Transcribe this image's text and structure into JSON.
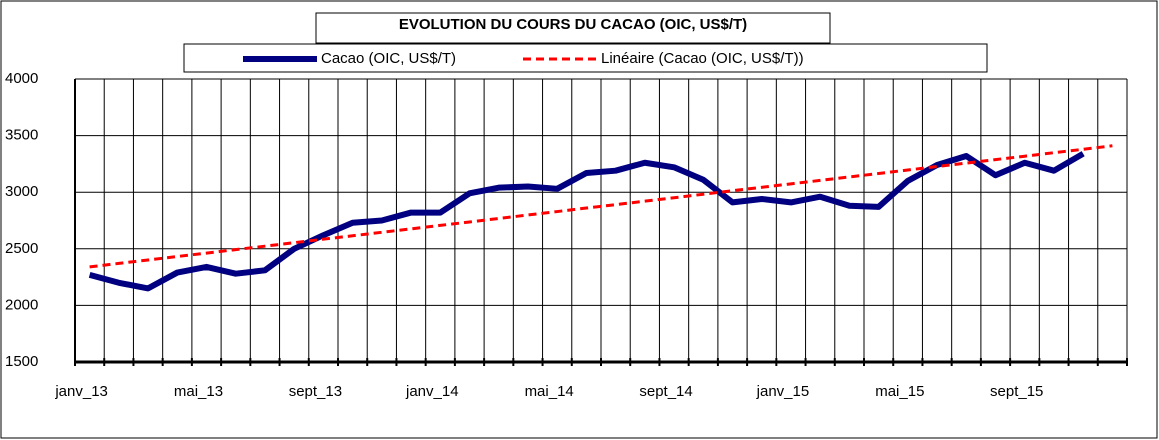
{
  "chart_data": {
    "type": "line",
    "title": "EVOLUTION DU COURS DU CACAO (OIC, US$/T)",
    "categories": [
      "janv_13",
      null,
      null,
      null,
      "mai_13",
      null,
      null,
      null,
      "sept_13",
      null,
      null,
      null,
      "janv_14",
      null,
      null,
      null,
      "mai_14",
      null,
      null,
      null,
      "sept_14",
      null,
      null,
      null,
      "janv_15",
      null,
      null,
      null,
      "mai_15",
      null,
      null,
      null,
      "sept_15",
      null,
      null,
      null
    ],
    "series": [
      {
        "name": "Cacao (OIC, US$/T)",
        "color": "#000080",
        "dashed": false,
        "values": [
          2270,
          2200,
          2150,
          2290,
          2340,
          2280,
          2310,
          2500,
          2620,
          2730,
          2750,
          2820,
          2820,
          2990,
          3040,
          3050,
          3030,
          3170,
          3190,
          3260,
          3220,
          3110,
          2910,
          2940,
          2910,
          2960,
          2880,
          2870,
          3100,
          3240,
          3320,
          3150,
          3260,
          3190,
          3340,
          null
        ]
      },
      {
        "name": "Linéaire (Cacao (OIC, US$/T))",
        "color": "#ff0000",
        "dashed": true,
        "values": [
          2340,
          2371,
          2401,
          2432,
          2462,
          2493,
          2523,
          2554,
          2585,
          2615,
          2646,
          2676,
          2707,
          2737,
          2768,
          2799,
          2829,
          2860,
          2890,
          2921,
          2951,
          2982,
          3013,
          3043,
          3074,
          3104,
          3135,
          3165,
          3196,
          3227,
          3257,
          3288,
          3318,
          3349,
          3379,
          3410
        ]
      }
    ],
    "ylim": [
      1500,
      4000
    ],
    "yticks": [
      1500,
      2000,
      2500,
      3000,
      3500,
      4000
    ],
    "grid": true
  }
}
